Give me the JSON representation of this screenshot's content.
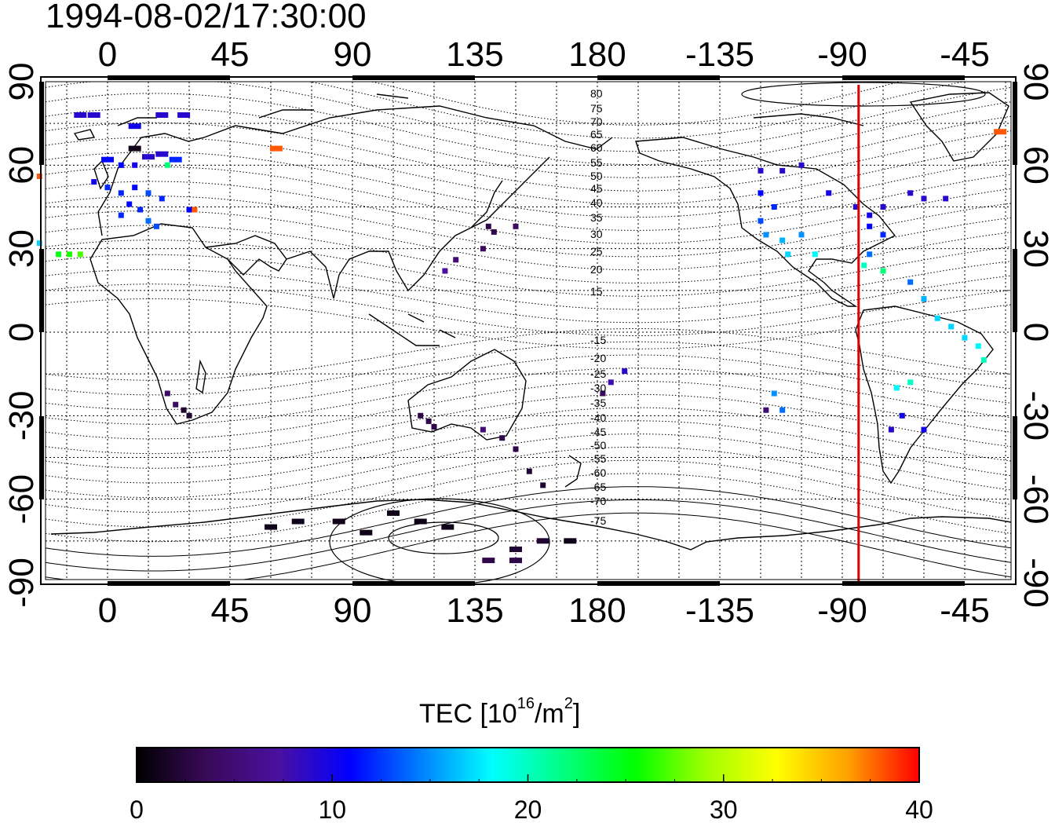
{
  "title": "1994-08-02/17:30:00",
  "axes": {
    "top_lon_labels": [
      "0",
      "45",
      "90",
      "135",
      "180",
      "-135",
      "-90",
      "-45"
    ],
    "bottom_lon_labels": [
      "0",
      "45",
      "90",
      "135",
      "180",
      "-135",
      "-90",
      "-45"
    ],
    "left_lat_labels": [
      "90",
      "60",
      "30",
      "0",
      "-30",
      "-60",
      "-90"
    ],
    "right_lat_labels": [
      "90",
      "60",
      "30",
      "0",
      "-30",
      "-60",
      "-90"
    ],
    "lon_ticks": [
      0,
      45,
      90,
      135,
      180,
      -135,
      -90,
      -45
    ],
    "lat_ticks": [
      90,
      60,
      30,
      0,
      -30,
      -60,
      -90
    ]
  },
  "contour_labels": [
    "80",
    "75",
    "70",
    "65",
    "60",
    "55",
    "50",
    "45",
    "40",
    "35",
    "30",
    "25",
    "20",
    "15",
    "-15",
    "-20",
    "-25",
    "-30",
    "-35",
    "-40",
    "-45",
    "-50",
    "-55",
    "-60",
    "-65",
    "-70",
    "-75"
  ],
  "red_line_lon": -84,
  "colorbar": {
    "title_prefix": "TEC  [10",
    "title_exp": "16",
    "title_mid": "/m",
    "title_exp2": "2",
    "title_suffix": "]",
    "min": 0,
    "max": 40,
    "tick_labels": [
      "0",
      "10",
      "20",
      "30",
      "40"
    ],
    "colors": [
      "#000000",
      "#3a0a5a",
      "#4a10a0",
      "#0000ff",
      "#0080ff",
      "#00ffff",
      "#00ff80",
      "#00ff00",
      "#a0ff00",
      "#ffff00",
      "#ffa000",
      "#ff0000"
    ]
  },
  "chart_data": {
    "type": "scatter",
    "title": "1994-08-02/17:30:00",
    "value_label": "TEC [10^16/m^2]",
    "value_range": [
      0,
      40
    ],
    "points": [
      {
        "lon": -10,
        "lat": 78,
        "tec": 9
      },
      {
        "lon": -5,
        "lat": 78,
        "tec": 9
      },
      {
        "lon": 10,
        "lat": 74,
        "tec": 10
      },
      {
        "lon": 20,
        "lat": 78,
        "tec": 9
      },
      {
        "lon": 28,
        "lat": 78,
        "tec": 9
      },
      {
        "lon": 0,
        "lat": 62,
        "tec": 11
      },
      {
        "lon": 5,
        "lat": 60,
        "tec": 11
      },
      {
        "lon": 10,
        "lat": 60,
        "tec": 10
      },
      {
        "lon": 15,
        "lat": 63,
        "tec": 9
      },
      {
        "lon": 20,
        "lat": 64,
        "tec": 9
      },
      {
        "lon": 25,
        "lat": 62,
        "tec": 12
      },
      {
        "lon": 10,
        "lat": 66,
        "tec": 1
      },
      {
        "lon": 22,
        "lat": 60,
        "tec": 22
      },
      {
        "lon": -5,
        "lat": 54,
        "tec": 10
      },
      {
        "lon": 0,
        "lat": 52,
        "tec": 12
      },
      {
        "lon": 5,
        "lat": 50,
        "tec": 12
      },
      {
        "lon": 10,
        "lat": 52,
        "tec": 11
      },
      {
        "lon": 15,
        "lat": 50,
        "tec": 13
      },
      {
        "lon": 20,
        "lat": 48,
        "tec": 12
      },
      {
        "lon": 8,
        "lat": 46,
        "tec": 11
      },
      {
        "lon": 12,
        "lat": 44,
        "tec": 12
      },
      {
        "lon": 5,
        "lat": 42,
        "tec": 12
      },
      {
        "lon": 15,
        "lat": 40,
        "tec": 14
      },
      {
        "lon": 18,
        "lat": 38,
        "tec": 13
      },
      {
        "lon": 30,
        "lat": 44,
        "tec": 11
      },
      {
        "lon": -25,
        "lat": 56,
        "tec": 38
      },
      {
        "lon": 62,
        "lat": 66,
        "tec": 38
      },
      {
        "lon": 32,
        "lat": 44,
        "tec": 38
      },
      {
        "lon": -25,
        "lat": 32,
        "tec": 17
      },
      {
        "lon": -18,
        "lat": 28,
        "tec": 25
      },
      {
        "lon": -14,
        "lat": 28,
        "tec": 26
      },
      {
        "lon": -10,
        "lat": 28,
        "tec": 27
      },
      {
        "lon": 140,
        "lat": 38,
        "tec": 3
      },
      {
        "lon": 142,
        "lat": 36,
        "tec": 3
      },
      {
        "lon": 138,
        "lat": 30,
        "tec": 4
      },
      {
        "lon": 128,
        "lat": 26,
        "tec": 5
      },
      {
        "lon": 124,
        "lat": 22,
        "tec": 7
      },
      {
        "lon": 150,
        "lat": 38,
        "tec": 4
      },
      {
        "lon": 22,
        "lat": -22,
        "tec": 4
      },
      {
        "lon": 25,
        "lat": -26,
        "tec": 4
      },
      {
        "lon": 28,
        "lat": -28,
        "tec": 2
      },
      {
        "lon": 30,
        "lat": -30,
        "tec": 2
      },
      {
        "lon": 115,
        "lat": -30,
        "tec": 3
      },
      {
        "lon": 118,
        "lat": -32,
        "tec": 3
      },
      {
        "lon": 120,
        "lat": -34,
        "tec": 3
      },
      {
        "lon": 138,
        "lat": -35,
        "tec": 5
      },
      {
        "lon": 145,
        "lat": -38,
        "tec": 3
      },
      {
        "lon": 150,
        "lat": -42,
        "tec": 3
      },
      {
        "lon": 155,
        "lat": -50,
        "tec": 2
      },
      {
        "lon": 160,
        "lat": -55,
        "tec": 2
      },
      {
        "lon": -170,
        "lat": -14,
        "tec": 9
      },
      {
        "lon": -175,
        "lat": -18,
        "tec": 8
      },
      {
        "lon": -178,
        "lat": -22,
        "tec": 4
      },
      {
        "lon": -115,
        "lat": -22,
        "tec": 15
      },
      {
        "lon": -112,
        "lat": -28,
        "tec": 14
      },
      {
        "lon": -118,
        "lat": -28,
        "tec": 5
      },
      {
        "lon": -120,
        "lat": 58,
        "tec": 9
      },
      {
        "lon": -112,
        "lat": 58,
        "tec": 9
      },
      {
        "lon": -105,
        "lat": 60,
        "tec": 9
      },
      {
        "lon": -120,
        "lat": 50,
        "tec": 11
      },
      {
        "lon": -115,
        "lat": 45,
        "tec": 12
      },
      {
        "lon": -120,
        "lat": 40,
        "tec": 13
      },
      {
        "lon": -118,
        "lat": 35,
        "tec": 15
      },
      {
        "lon": -112,
        "lat": 33,
        "tec": 16
      },
      {
        "lon": -105,
        "lat": 35,
        "tec": 15
      },
      {
        "lon": -110,
        "lat": 28,
        "tec": 17
      },
      {
        "lon": -100,
        "lat": 28,
        "tec": 18
      },
      {
        "lon": -95,
        "lat": 50,
        "tec": 10
      },
      {
        "lon": -85,
        "lat": 45,
        "tec": 9
      },
      {
        "lon": -80,
        "lat": 42,
        "tec": 10
      },
      {
        "lon": -75,
        "lat": 45,
        "tec": 9
      },
      {
        "lon": -65,
        "lat": 50,
        "tec": 9
      },
      {
        "lon": -60,
        "lat": 48,
        "tec": 9
      },
      {
        "lon": -52,
        "lat": 48,
        "tec": 9
      },
      {
        "lon": -80,
        "lat": 38,
        "tec": 11
      },
      {
        "lon": -75,
        "lat": 35,
        "tec": 12
      },
      {
        "lon": -80,
        "lat": 28,
        "tec": 14
      },
      {
        "lon": -82,
        "lat": 24,
        "tec": 20
      },
      {
        "lon": -75,
        "lat": 22,
        "tec": 22
      },
      {
        "lon": -65,
        "lat": 18,
        "tec": 14
      },
      {
        "lon": -60,
        "lat": 12,
        "tec": 16
      },
      {
        "lon": -55,
        "lat": 5,
        "tec": 17
      },
      {
        "lon": -50,
        "lat": 2,
        "tec": 17
      },
      {
        "lon": -45,
        "lat": -2,
        "tec": 17
      },
      {
        "lon": -40,
        "lat": -5,
        "tec": 18
      },
      {
        "lon": -38,
        "lat": -10,
        "tec": 20
      },
      {
        "lon": -65,
        "lat": -18,
        "tec": 20
      },
      {
        "lon": -70,
        "lat": -20,
        "tec": 18
      },
      {
        "lon": -68,
        "lat": -30,
        "tec": 10
      },
      {
        "lon": -72,
        "lat": -35,
        "tec": 9
      },
      {
        "lon": -60,
        "lat": -35,
        "tec": 10
      },
      {
        "lon": -32,
        "lat": 72,
        "tec": 38
      },
      {
        "lon": 60,
        "lat": -70,
        "tec": 1
      },
      {
        "lon": 70,
        "lat": -68,
        "tec": 1
      },
      {
        "lon": 85,
        "lat": -68,
        "tec": 1
      },
      {
        "lon": 95,
        "lat": -72,
        "tec": 1
      },
      {
        "lon": 105,
        "lat": -65,
        "tec": 1
      },
      {
        "lon": 115,
        "lat": -68,
        "tec": 1
      },
      {
        "lon": 125,
        "lat": -70,
        "tec": 1
      },
      {
        "lon": 150,
        "lat": -78,
        "tec": 2
      },
      {
        "lon": 160,
        "lat": -75,
        "tec": 2
      },
      {
        "lon": 170,
        "lat": -75,
        "tec": 1
      },
      {
        "lon": 140,
        "lat": -82,
        "tec": 3
      },
      {
        "lon": 150,
        "lat": -82,
        "tec": 3
      }
    ]
  }
}
